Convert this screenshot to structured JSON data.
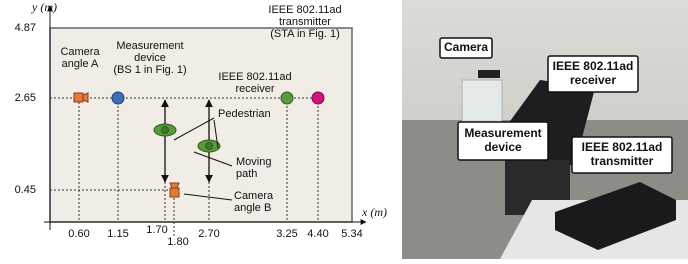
{
  "diagram": {
    "y_axis_label": "y (m)",
    "x_axis_label": "x (m)",
    "x_ticks": [
      "0.60",
      "1.15",
      "1.70",
      "1.80",
      "2.70",
      "3.25",
      "4.40",
      "5.34"
    ],
    "y_ticks": [
      "4.87",
      "2.65",
      "0.45"
    ],
    "annotations": [
      {
        "lines": [
          "Camera",
          "angle A"
        ]
      },
      {
        "lines": [
          "Measurement",
          "device",
          "(BS 1 in Fig. 1)"
        ]
      },
      {
        "lines": [
          "IEEE 802.11ad",
          "transmitter",
          "(STA in Fig. 1)"
        ]
      },
      {
        "lines": [
          "IEEE 802.11ad",
          "receiver"
        ]
      },
      {
        "lines": [
          "Pedestrian"
        ]
      },
      {
        "lines": [
          "Moving",
          "path"
        ]
      },
      {
        "lines": [
          "Camera",
          "angle B"
        ]
      }
    ]
  },
  "photo": {
    "labels": [
      {
        "lines": [
          "Camera"
        ]
      },
      {
        "lines": [
          "IEEE 802.11ad",
          "receiver"
        ]
      },
      {
        "lines": [
          "Measurement",
          "device"
        ]
      },
      {
        "lines": [
          "IEEE 802.11ad",
          "transmitter"
        ]
      }
    ]
  }
}
